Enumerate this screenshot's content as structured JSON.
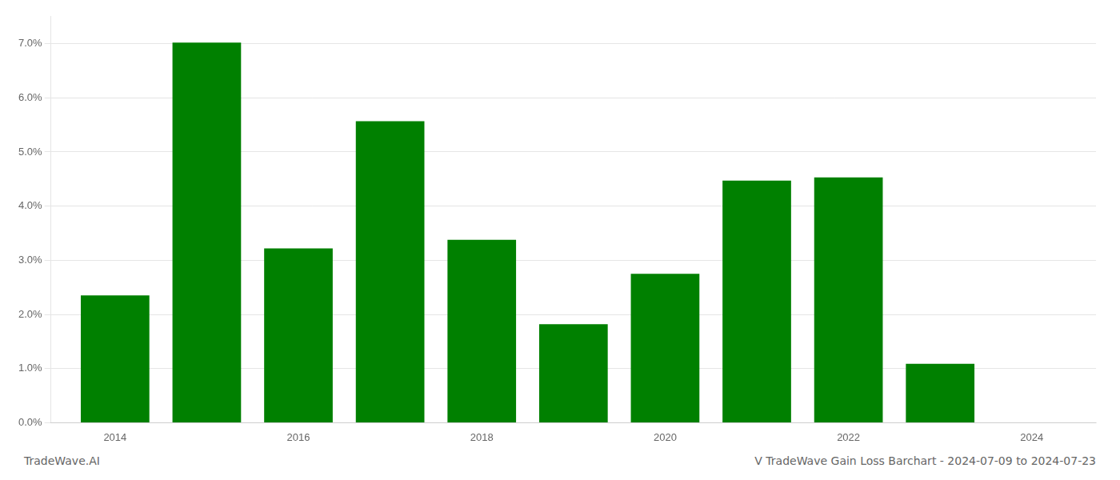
{
  "chart_data": {
    "type": "bar",
    "x": [
      2014,
      2015,
      2016,
      2017,
      2018,
      2019,
      2020,
      2021,
      2022,
      2023
    ],
    "values": [
      0.0235,
      0.0702,
      0.0322,
      0.0557,
      0.0338,
      0.0182,
      0.0275,
      0.0447,
      0.0453,
      0.0109
    ],
    "color": "#008000",
    "xlim": [
      2013.3,
      2024.7
    ],
    "xticks": [
      2014,
      2016,
      2018,
      2020,
      2022,
      2024
    ],
    "ylim": [
      0,
      0.075
    ],
    "yticks": [
      {
        "value": 0.0,
        "label": "0.0%"
      },
      {
        "value": 0.01,
        "label": "1.0%"
      },
      {
        "value": 0.02,
        "label": "2.0%"
      },
      {
        "value": 0.03,
        "label": "3.0%"
      },
      {
        "value": 0.04,
        "label": "4.0%"
      },
      {
        "value": 0.05,
        "label": "5.0%"
      },
      {
        "value": 0.06,
        "label": "6.0%"
      },
      {
        "value": 0.07,
        "label": "7.0%"
      }
    ],
    "grid": "y",
    "annotations": [
      "TradeWave.AI",
      "V TradeWave Gain Loss Barchart - 2024-07-09 to 2024-07-23"
    ]
  }
}
